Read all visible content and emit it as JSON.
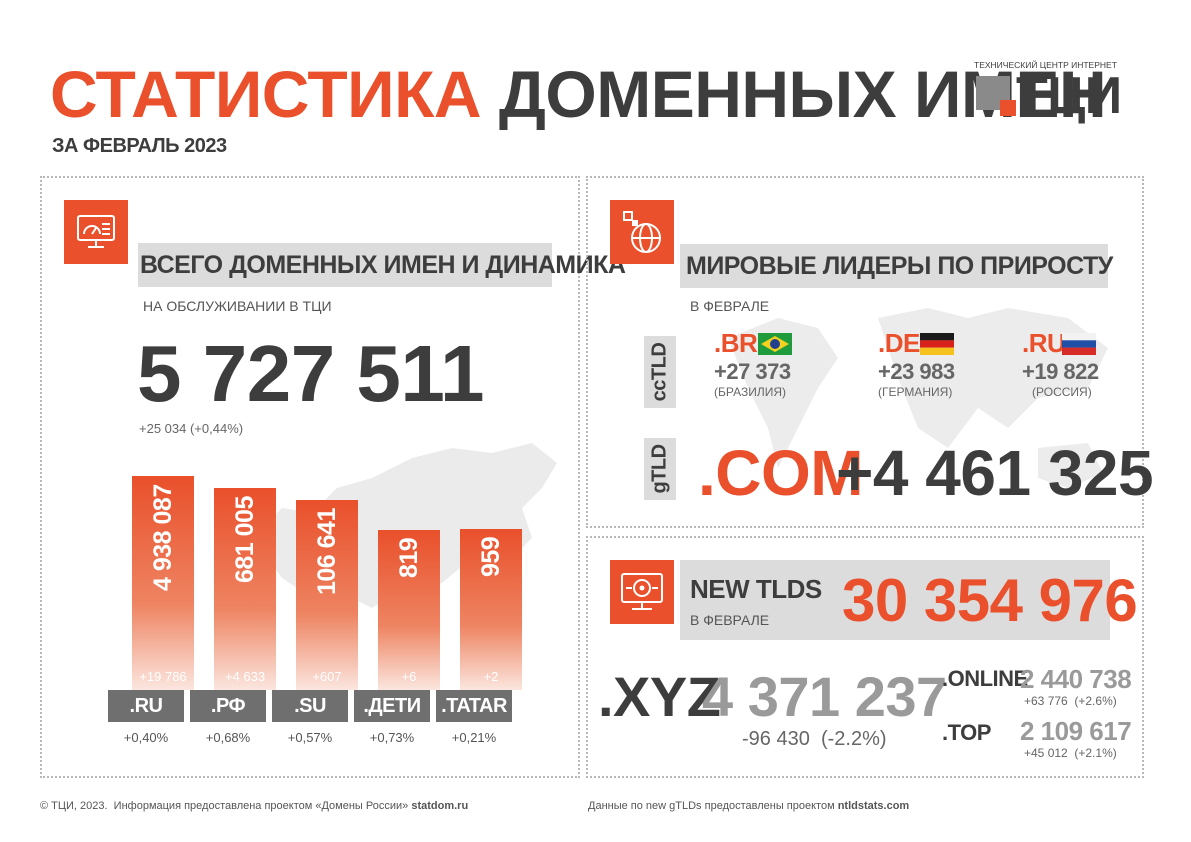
{
  "header": {
    "title_accent": "СТАТИСТИКА",
    "title_rest": "ДОМЕННЫХ ИМЕН",
    "subtitle": "ЗА ФЕВРАЛЬ 2023",
    "logo_caption": "ТЕХНИЧЕСКИЙ ЦЕНТР ИНТЕРНЕТ",
    "logo_text": "ТЦИ"
  },
  "left_panel": {
    "heading": "ВСЕГО ДОМЕННЫХ ИМЕН И ДИНАМИКА",
    "caption": "НА ОБСЛУЖИВАНИИ В ТЦИ",
    "total": "5 727 511",
    "total_delta": "+25 034 (+0,44%)",
    "icon": "monitor-dashboard-icon"
  },
  "chart_data": {
    "type": "bar",
    "categories": [
      ".RU",
      ".РФ",
      ".SU",
      ".ДЕТИ",
      ".TATAR"
    ],
    "values": [
      4938087,
      681005,
      106641,
      819,
      959
    ],
    "value_labels": [
      "4 938 087",
      "681 005",
      "106 641",
      "819",
      "959"
    ],
    "deltas": [
      "+19 786",
      "+4 633",
      "+607",
      "+6",
      "+2"
    ],
    "percent": [
      "+0,40%",
      "+0,68%",
      "+0,57%",
      "+0,73%",
      "+0,21%"
    ]
  },
  "world_panel": {
    "heading": "МИРОВЫЕ ЛИДЕРЫ ПО ПРИРОСТУ",
    "caption": "В ФЕВРАЛЕ",
    "cctld_label": "ccTLD",
    "gtld_label": "gTLD",
    "icon": "globe-icon",
    "cctlds": [
      {
        "tld": ".BR",
        "delta": "+27 373",
        "country": "(БРАЗИЛИЯ)",
        "flag": "brazil-flag"
      },
      {
        "tld": ".DE",
        "delta": "+23 983",
        "country": "(ГЕРМАНИЯ)",
        "flag": "germany-flag"
      },
      {
        "tld": ".RU",
        "delta": "+19 822",
        "country": "(РОССИЯ)",
        "flag": "russia-flag"
      }
    ],
    "gtld": {
      "tld": ".COM",
      "delta": "+4 461 325"
    }
  },
  "new_tlds_panel": {
    "heading": "NEW TLDS",
    "caption": "В ФЕВРАЛЕ",
    "total": "30 354 976",
    "icon": "globe-gear-icon",
    "leader": {
      "tld": ".XYZ",
      "value": "4 371 237",
      "delta": "-96 430  (-2.2%)"
    },
    "others": [
      {
        "tld": ".ONLINE",
        "value": "2 440 738",
        "delta": "+63 776  (+2.6%)"
      },
      {
        "tld": ".TOP",
        "value": "2 109 617",
        "delta": "+45 012  (+2.1%)"
      }
    ]
  },
  "footer": {
    "left_text": "© ТЦИ, 2023.  Информация предоставлена проектом «Домены России» ",
    "left_link": "statdom.ru",
    "right_text": "Данные по new gTLDs предоставлены проектом ",
    "right_link": "ntldstats.com"
  },
  "colors": {
    "accent": "#e9502b",
    "dark": "#3d3d3d",
    "band": "#dcdcdc"
  }
}
